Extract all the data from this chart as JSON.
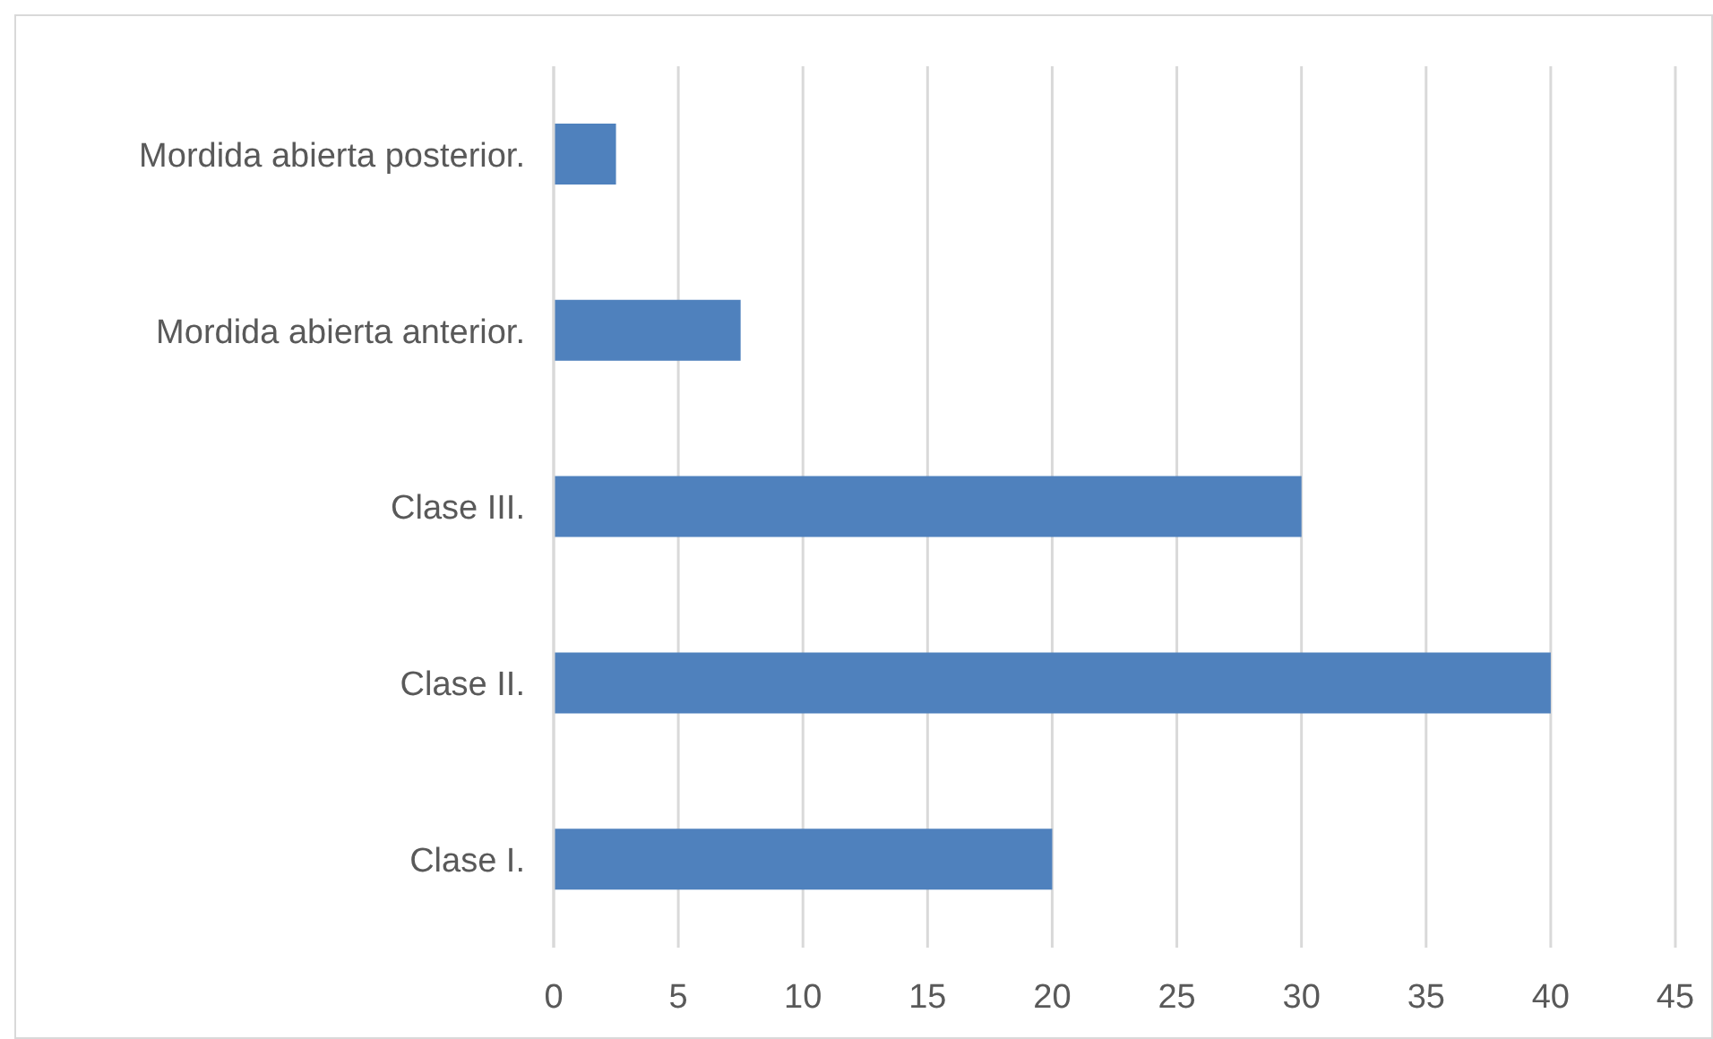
{
  "chart_data": {
    "type": "bar",
    "orientation": "horizontal",
    "categories": [
      "Mordida abierta posterior.",
      "Mordida abierta anterior.",
      "Clase III.",
      "Clase II.",
      "Clase I."
    ],
    "values": [
      2.5,
      7.5,
      30,
      40,
      20
    ],
    "color": "#4f81bd",
    "xlim": [
      0,
      45
    ],
    "xticks": [
      0,
      5,
      10,
      15,
      20,
      25,
      30,
      35,
      40,
      45
    ],
    "grid": "x",
    "legend": false
  }
}
